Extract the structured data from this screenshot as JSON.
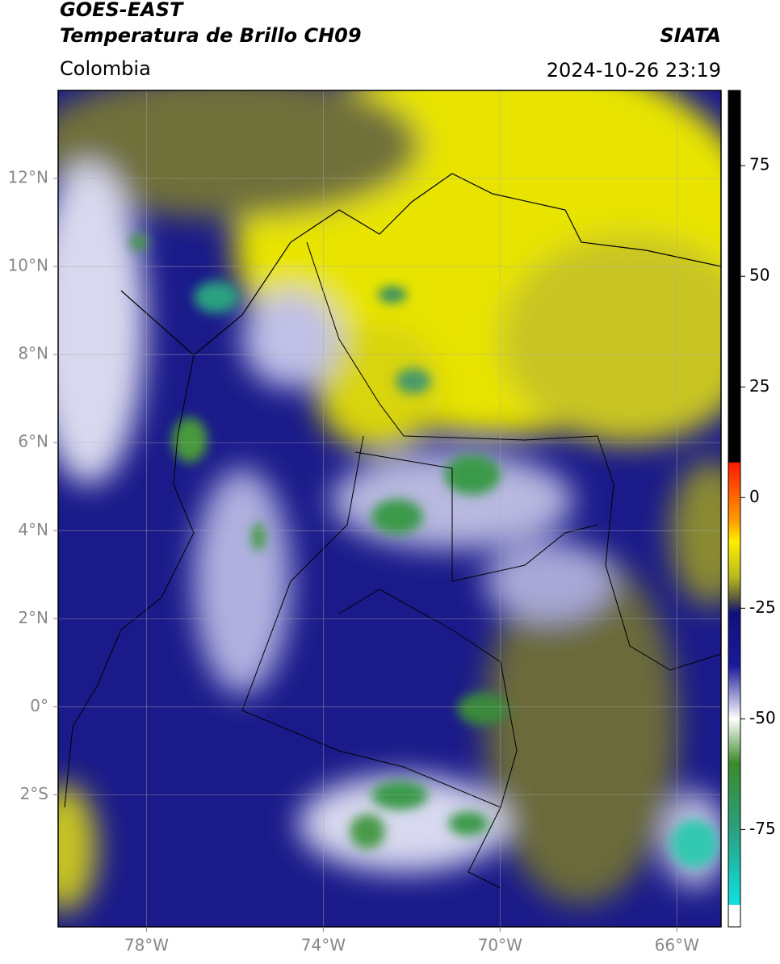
{
  "header": {
    "title": "GOES-EAST",
    "subtitle": "Temperatura de Brillo CH09",
    "source": "SIATA",
    "region": "Colombia",
    "datetime": "2024-10-26 23:19"
  },
  "map": {
    "xlim": [
      -80,
      -65
    ],
    "ylim": [
      -5,
      14
    ],
    "grid": true,
    "xticks": [
      {
        "value": -78,
        "label": "78°W"
      },
      {
        "value": -74,
        "label": "74°W"
      },
      {
        "value": -70,
        "label": "70°W"
      },
      {
        "value": -66,
        "label": "66°W"
      }
    ],
    "yticks": [
      {
        "value": 12,
        "label": "12°N"
      },
      {
        "value": 10,
        "label": "10°N"
      },
      {
        "value": 8,
        "label": "8°N"
      },
      {
        "value": 6,
        "label": "6°N"
      },
      {
        "value": 4,
        "label": "4°N"
      },
      {
        "value": 2,
        "label": "2°N"
      },
      {
        "value": 0,
        "label": "0°"
      },
      {
        "value": -2,
        "label": "2°S"
      }
    ]
  },
  "colorbar": {
    "lim": [
      -97,
      92
    ],
    "ticks": [
      75,
      50,
      25,
      0,
      -25,
      -50,
      -75
    ],
    "colormap": [
      {
        "value": 92,
        "color": "#000000"
      },
      {
        "value": 8,
        "color": "#000000"
      },
      {
        "value": 7.9,
        "color": "#ff1a00"
      },
      {
        "value": -5,
        "color": "#ff9900"
      },
      {
        "value": -10,
        "color": "#ffee00"
      },
      {
        "value": -18,
        "color": "#b8b820"
      },
      {
        "value": -23,
        "color": "#555540"
      },
      {
        "value": -26,
        "color": "#10107a"
      },
      {
        "value": -38,
        "color": "#1a1a9a"
      },
      {
        "value": -50,
        "color": "#ffffff"
      },
      {
        "value": -60,
        "color": "#3a8a2a"
      },
      {
        "value": -75,
        "color": "#2aa080"
      },
      {
        "value": -92,
        "color": "#10e0e0"
      },
      {
        "value": -92.1,
        "color": "#ffffff"
      },
      {
        "value": -97,
        "color": "#ffffff"
      }
    ]
  }
}
